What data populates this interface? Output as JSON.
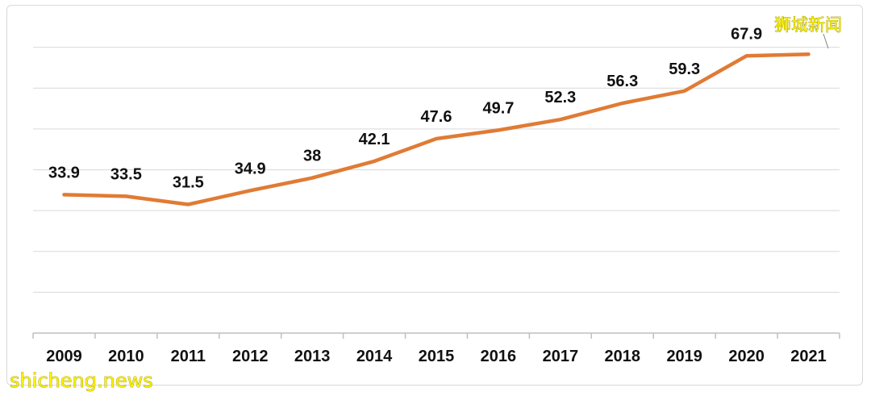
{
  "chart_data": {
    "type": "line",
    "categories": [
      "2009",
      "2010",
      "2011",
      "2012",
      "2013",
      "2014",
      "2015",
      "2016",
      "2017",
      "2018",
      "2019",
      "2020",
      "2021"
    ],
    "series": [
      {
        "values": [
          33.9,
          33.5,
          31.5,
          34.9,
          38,
          42.1,
          47.6,
          49.7,
          52.3,
          56.3,
          59.3,
          67.9,
          68.3
        ],
        "labels": [
          "33.9",
          "33.5",
          "31.5",
          "34.9",
          "38",
          "42.1",
          "47.6",
          "49.7",
          "52.3",
          "56.3",
          "59.3",
          "67.9",
          ""
        ],
        "color": "#e07b35"
      }
    ],
    "ylim": [
      0,
      80
    ],
    "grid": true,
    "legend": "none"
  },
  "watermarks": {
    "top_right": "狮城新闻",
    "bottom_left": "shicheng.news"
  }
}
